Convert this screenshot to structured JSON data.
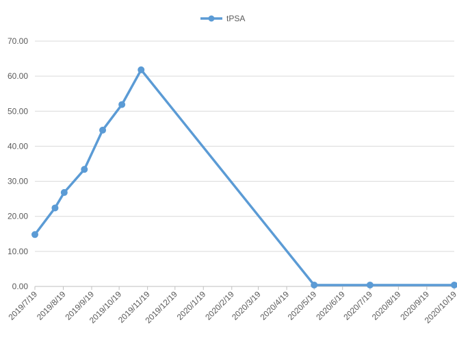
{
  "chart_data": {
    "type": "line",
    "title": "",
    "xlabel": "",
    "ylabel": "",
    "legend": {
      "position": "top",
      "entries": [
        "tPSA"
      ]
    },
    "grid": {
      "horizontal": true,
      "vertical": false
    },
    "ylim": [
      0,
      70
    ],
    "y_ticks": [
      "0.00",
      "10.00",
      "20.00",
      "30.00",
      "40.00",
      "50.00",
      "60.00",
      "70.00"
    ],
    "x_ticks": [
      "2019/7/19",
      "2019/8/19",
      "2019/9/19",
      "2019/10/19",
      "2019/11/19",
      "2019/12/19",
      "2020/1/19",
      "2020/2/19",
      "2020/3/19",
      "2020/4/19",
      "2020/5/19",
      "2020/6/19",
      "2020/7/19",
      "2020/8/19",
      "2020/9/19",
      "2020/10/19"
    ],
    "series": [
      {
        "name": "tPSA",
        "color": "#5B9BD5",
        "points": [
          {
            "x": "2019/7/19",
            "y": 14.8
          },
          {
            "x": "2019/8/10",
            "y": 22.4
          },
          {
            "x": "2019/8/20",
            "y": 26.8
          },
          {
            "x": "2019/9/11",
            "y": 33.4
          },
          {
            "x": "2019/10/1",
            "y": 44.6
          },
          {
            "x": "2019/10/22",
            "y": 51.9
          },
          {
            "x": "2019/11/12",
            "y": 61.8
          },
          {
            "x": "2020/5/19",
            "y": 0.4
          },
          {
            "x": "2020/7/19",
            "y": 0.4
          },
          {
            "x": "2020/10/19",
            "y": 0.4
          }
        ]
      }
    ]
  }
}
